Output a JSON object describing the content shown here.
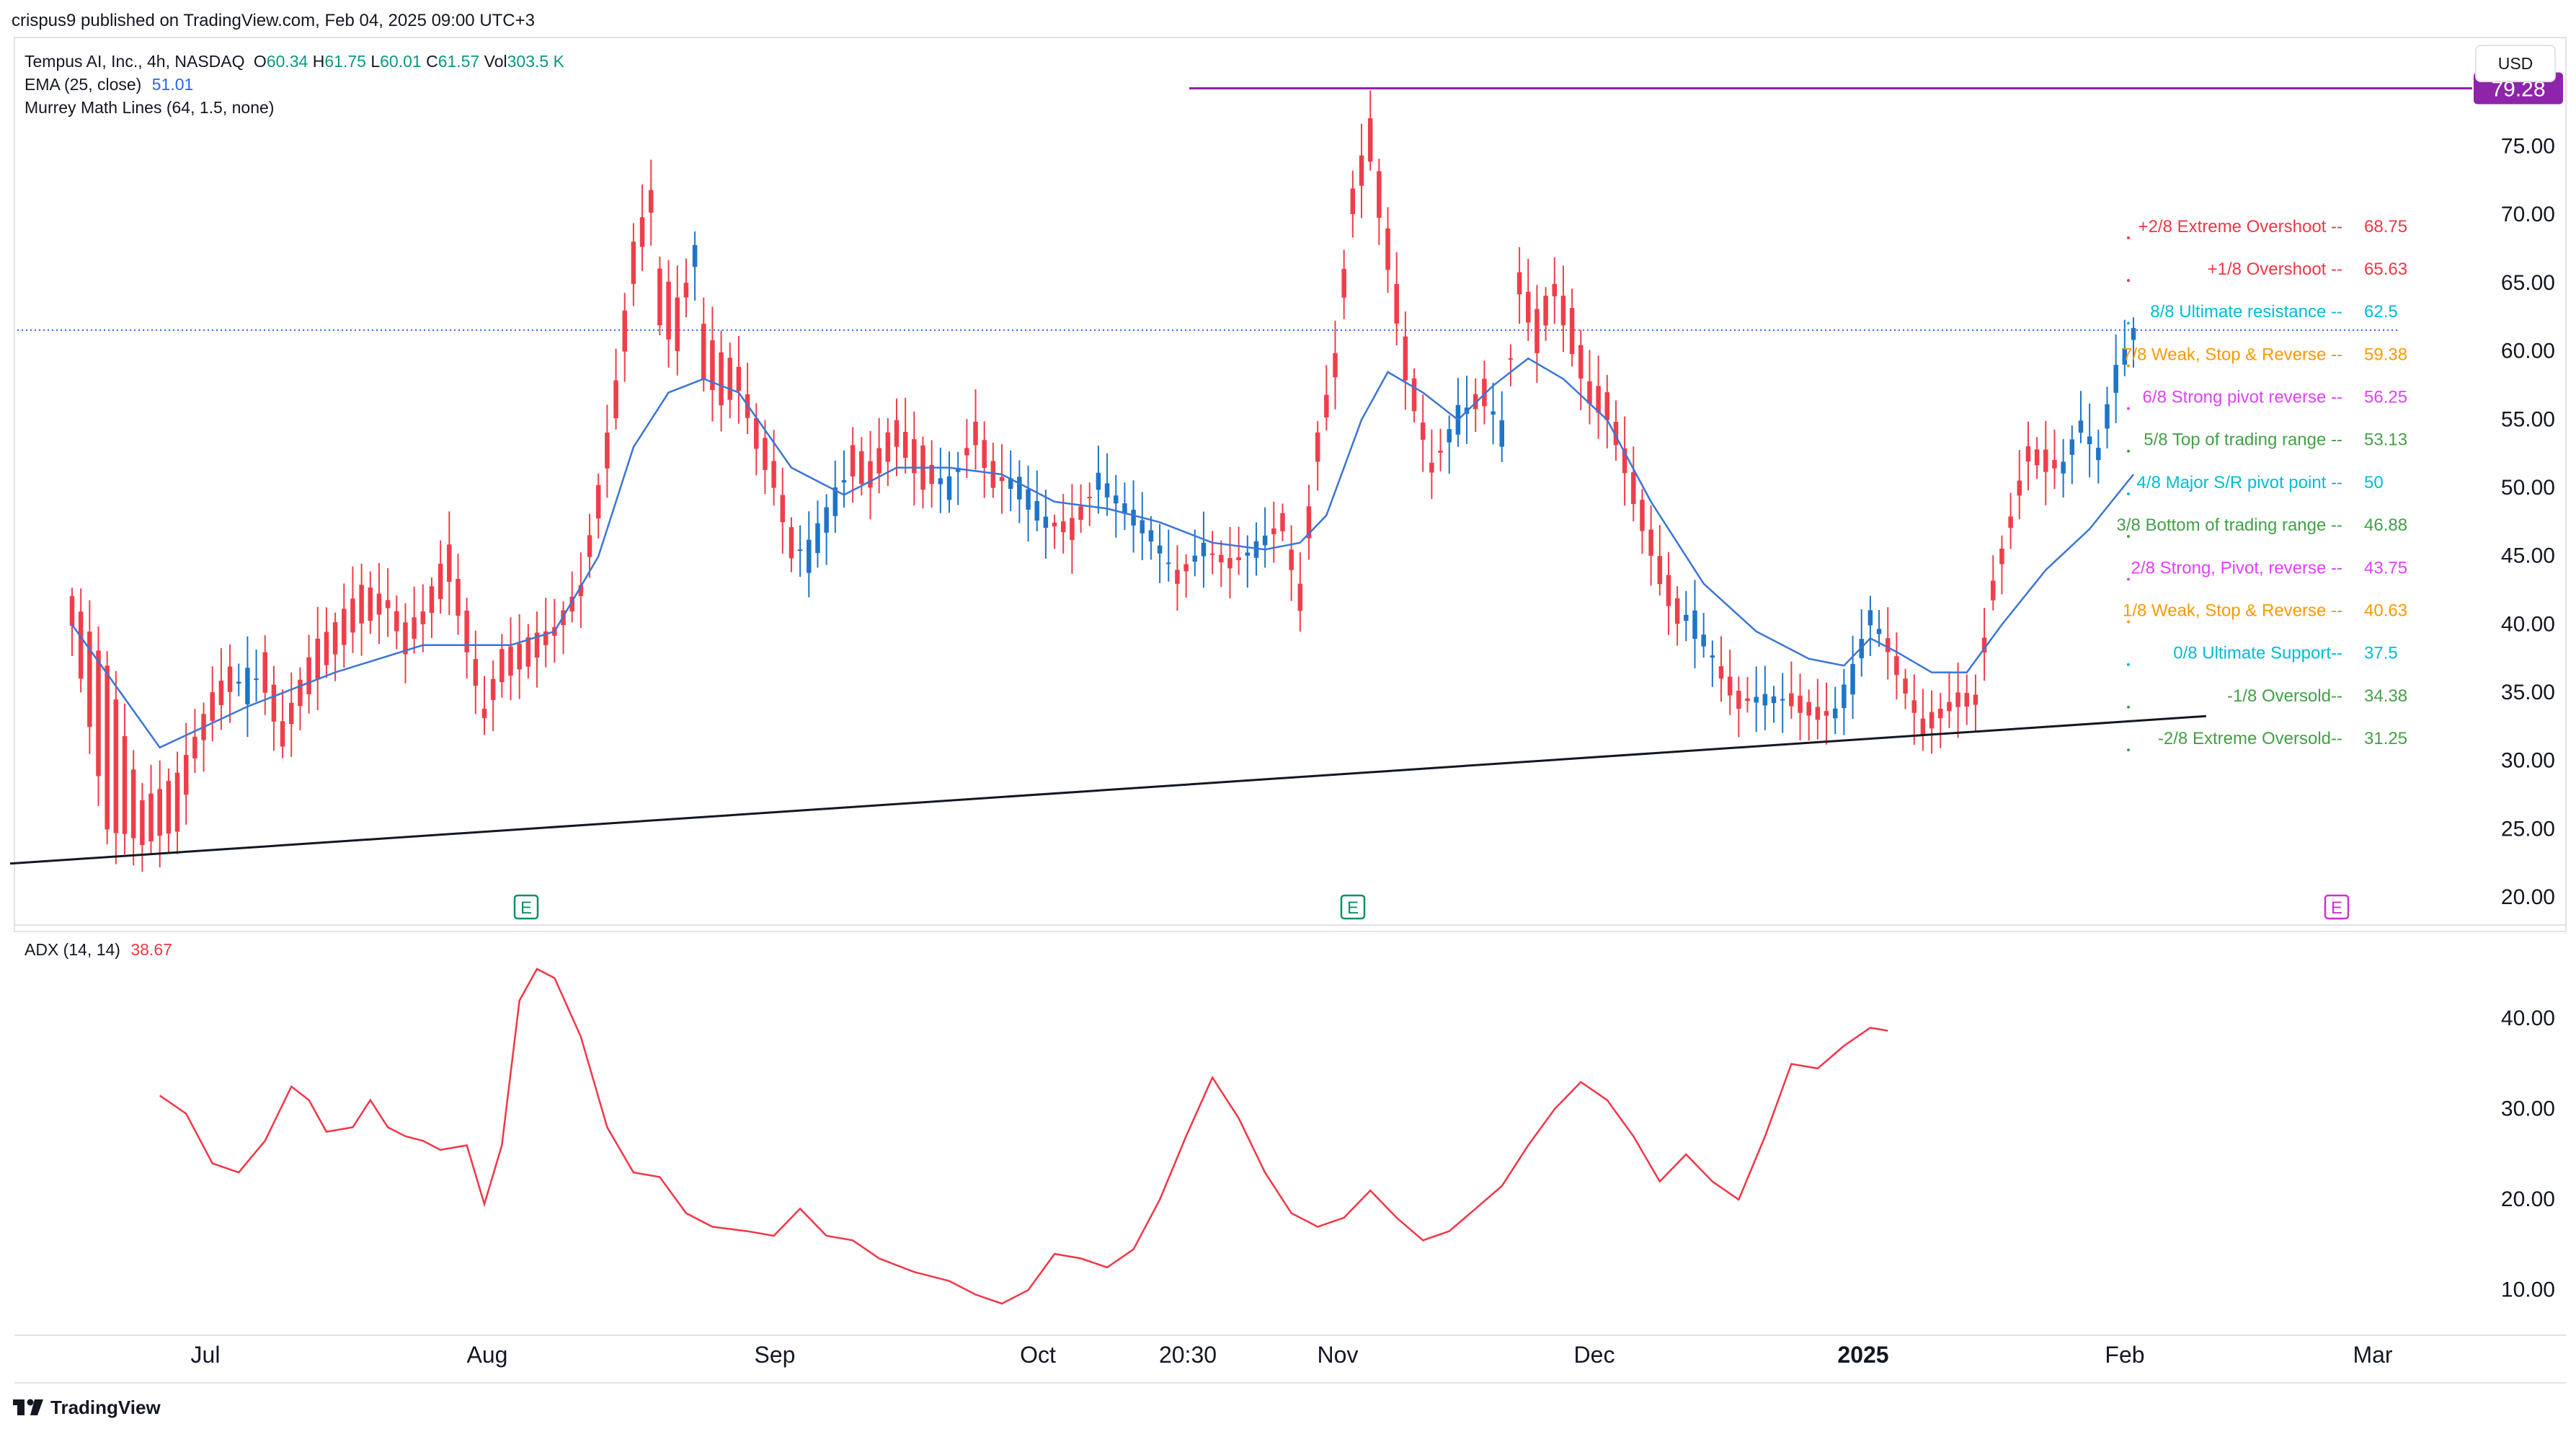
{
  "publisher_line": "crispus9 published on TradingView.com, Feb 04, 2025 09:00 UTC+3",
  "currency": "USD",
  "brand": "TradingView",
  "legend": {
    "symbol": "Tempus AI, Inc., 4h, NASDAQ",
    "o_label": "O",
    "o_value": "60.34",
    "h_label": "H",
    "h_value": "61.75",
    "l_label": "L",
    "l_value": "60.01",
    "c_label": "C",
    "c_value": "61.57",
    "vol_label": "Vol",
    "vol_value": "303.5 K",
    "ema_label": "EMA (25, close)",
    "ema_value": "51.01",
    "murrey_label": "Murrey Math Lines (64, 1.5, none)",
    "adx_label": "ADX (14, 14)",
    "adx_value": "38.67"
  },
  "colors": {
    "up": "#1e75c8",
    "down": "#ef3e4a",
    "ema": "#3b75d6",
    "adx": "#f23645",
    "resistance": "#8e24aa",
    "trendline": "#131722",
    "earnings": "#0a8f6f",
    "earnings_future": "#d22ed2"
  },
  "chart_data": [
    {
      "type": "candlestick",
      "title": "Tempus AI, Inc., 4h, NASDAQ",
      "ylim": [
        18,
        83
      ],
      "yticks": [
        20,
        25,
        30,
        35,
        40,
        45,
        50,
        55,
        60,
        65,
        70,
        75
      ],
      "ytick_labels": [
        "20.00",
        "25.00",
        "30.00",
        "35.00",
        "40.00",
        "45.00",
        "50.00",
        "55.00",
        "60.00",
        "65.00",
        "70.00",
        "75.00"
      ],
      "x_labels": [
        "Jul",
        "Aug",
        "Sep",
        "Oct",
        "20:30",
        "Nov",
        "Dec",
        "2025",
        "Feb",
        "Mar"
      ],
      "anchors": [
        [
          0,
          42,
          40
        ],
        [
          4,
          37,
          25
        ],
        [
          8,
          27,
          24
        ],
        [
          12,
          29,
          25
        ],
        [
          14,
          32,
          30
        ],
        [
          16,
          35,
          33
        ],
        [
          18,
          37,
          35
        ],
        [
          20,
          34,
          37
        ],
        [
          22,
          38,
          35
        ],
        [
          24,
          33,
          31
        ],
        [
          26,
          36,
          34
        ],
        [
          28,
          39,
          36
        ],
        [
          30,
          40,
          38
        ],
        [
          33,
          43,
          40
        ],
        [
          36,
          42,
          41
        ],
        [
          38,
          40,
          38
        ],
        [
          40,
          41,
          40
        ],
        [
          43,
          46,
          43
        ],
        [
          45,
          41,
          38
        ],
        [
          47,
          34,
          33
        ],
        [
          49,
          38,
          36
        ],
        [
          52,
          39,
          37
        ],
        [
          55,
          40,
          39
        ],
        [
          58,
          43,
          42
        ],
        [
          60,
          50,
          48
        ],
        [
          62,
          58,
          55
        ],
        [
          64,
          68,
          65
        ],
        [
          66,
          72,
          70
        ],
        [
          67,
          66,
          62
        ],
        [
          69,
          64,
          60
        ],
        [
          71,
          66,
          68
        ],
        [
          72,
          62,
          58
        ],
        [
          74,
          60,
          56
        ],
        [
          76,
          59,
          57
        ],
        [
          78,
          55,
          53
        ],
        [
          80,
          52,
          50
        ],
        [
          82,
          47,
          45
        ],
        [
          84,
          44,
          46
        ],
        [
          87,
          48,
          50
        ],
        [
          89,
          53,
          51
        ],
        [
          91,
          52,
          50
        ],
        [
          94,
          55,
          53
        ],
        [
          97,
          53,
          50
        ],
        [
          100,
          49,
          51
        ],
        [
          103,
          55,
          53
        ],
        [
          105,
          52,
          50
        ],
        [
          108,
          49,
          51
        ],
        [
          111,
          47,
          48
        ],
        [
          114,
          48,
          46
        ],
        [
          117,
          50,
          51
        ],
        [
          120,
          48,
          49
        ],
        [
          123,
          46,
          47
        ],
        [
          126,
          44,
          43
        ],
        [
          129,
          45,
          46
        ],
        [
          132,
          45,
          44
        ],
        [
          135,
          45,
          46
        ],
        [
          138,
          48,
          47
        ],
        [
          140,
          43,
          41
        ],
        [
          142,
          54,
          52
        ],
        [
          144,
          60,
          58
        ],
        [
          146,
          72,
          70
        ],
        [
          148,
          77,
          74
        ],
        [
          150,
          69,
          66
        ],
        [
          152,
          61,
          58
        ],
        [
          155,
          52,
          51
        ],
        [
          158,
          54,
          56
        ],
        [
          161,
          58,
          56
        ],
        [
          163,
          53,
          55
        ],
        [
          165,
          66,
          64
        ],
        [
          167,
          63,
          60
        ],
        [
          169,
          65,
          64
        ],
        [
          171,
          63,
          60
        ],
        [
          173,
          58,
          56
        ],
        [
          175,
          57,
          55
        ],
        [
          177,
          53,
          51
        ],
        [
          179,
          49,
          47
        ],
        [
          181,
          45,
          43
        ],
        [
          183,
          42,
          40
        ],
        [
          185,
          39,
          41
        ],
        [
          188,
          37,
          36
        ],
        [
          190,
          35,
          34
        ],
        [
          193,
          34,
          35
        ],
        [
          196,
          35,
          34
        ],
        [
          199,
          34,
          33
        ],
        [
          201,
          33,
          34
        ],
        [
          203,
          35,
          37
        ],
        [
          205,
          40,
          41
        ],
        [
          207,
          39,
          38
        ],
        [
          209,
          36,
          35
        ],
        [
          211,
          33,
          32
        ],
        [
          213,
          34,
          33
        ],
        [
          215,
          35,
          34
        ],
        [
          217,
          35,
          34
        ],
        [
          219,
          43,
          42
        ],
        [
          221,
          48,
          47
        ],
        [
          223,
          53,
          52
        ],
        [
          225,
          53,
          51
        ],
        [
          227,
          51,
          52
        ],
        [
          229,
          54,
          55
        ],
        [
          231,
          52,
          53
        ],
        [
          233,
          57,
          59
        ],
        [
          235,
          61,
          61.57
        ]
      ],
      "ema": [
        [
          0,
          40
        ],
        [
          10,
          31
        ],
        [
          20,
          34
        ],
        [
          30,
          36.5
        ],
        [
          40,
          38.5
        ],
        [
          50,
          38.5
        ],
        [
          55,
          39.5
        ],
        [
          60,
          45
        ],
        [
          64,
          53
        ],
        [
          68,
          57
        ],
        [
          72,
          58
        ],
        [
          76,
          57
        ],
        [
          82,
          51.5
        ],
        [
          88,
          49.5
        ],
        [
          94,
          51.5
        ],
        [
          100,
          51.5
        ],
        [
          106,
          51
        ],
        [
          112,
          49
        ],
        [
          118,
          48.5
        ],
        [
          124,
          47.5
        ],
        [
          130,
          46
        ],
        [
          136,
          45.5
        ],
        [
          140,
          46
        ],
        [
          143,
          48
        ],
        [
          147,
          55
        ],
        [
          150,
          58.5
        ],
        [
          154,
          57
        ],
        [
          158,
          55
        ],
        [
          162,
          57.5
        ],
        [
          166,
          59.5
        ],
        [
          170,
          58
        ],
        [
          175,
          55
        ],
        [
          180,
          49
        ],
        [
          186,
          43
        ],
        [
          192,
          39.5
        ],
        [
          198,
          37.5
        ],
        [
          202,
          37
        ],
        [
          205,
          39
        ],
        [
          208,
          38
        ],
        [
          212,
          36.5
        ],
        [
          216,
          36.5
        ],
        [
          220,
          40
        ],
        [
          225,
          44
        ],
        [
          230,
          47
        ],
        [
          235,
          51
        ]
      ],
      "murrey_levels": [
        {
          "label": "+2/8 Extreme Overshoot --",
          "value": 68.75,
          "value_text": "68.75",
          "color": "#f23645"
        },
        {
          "label": "+1/8 Overshoot --",
          "value": 65.63,
          "value_text": "65.63",
          "color": "#f23645"
        },
        {
          "label": "8/8 Ultimate resistance --",
          "value": 62.5,
          "value_text": "62.5",
          "color": "#00bcd4"
        },
        {
          "label": "7/8 Weak, Stop & Reverse --",
          "value": 59.38,
          "value_text": "59.38",
          "color": "#ff9800"
        },
        {
          "label": "6/8 Strong pivot reverse --",
          "value": 56.25,
          "value_text": "56.25",
          "color": "#e040fb"
        },
        {
          "label": "5/8 Top of trading range --",
          "value": 53.13,
          "value_text": "53.13",
          "color": "#43a047"
        },
        {
          "label": "4/8 Major S/R pivot point --",
          "value": 50,
          "value_text": "50",
          "color": "#00bcd4"
        },
        {
          "label": "3/8 Bottom of trading range --",
          "value": 46.88,
          "value_text": "46.88",
          "color": "#43a047"
        },
        {
          "label": "2/8 Strong, Pivot, reverse --",
          "value": 43.75,
          "value_text": "43.75",
          "color": "#e040fb"
        },
        {
          "label": "1/8 Weak, Stop & Reverse --",
          "value": 40.63,
          "value_text": "40.63",
          "color": "#ff9800"
        },
        {
          "label": "0/8 Ultimate Support--",
          "value": 37.5,
          "value_text": "37.5",
          "color": "#00bcd4"
        },
        {
          "label": "-1/8 Oversold--",
          "value": 34.38,
          "value_text": "34.38",
          "color": "#43a047"
        },
        {
          "label": "-2/8 Extreme Oversold--",
          "value": 31.25,
          "value_text": "31.25",
          "color": "#43a047"
        }
      ],
      "resistance_level": 79.28,
      "resistance_label": "79.28",
      "last_price": 61.57,
      "trendline": [
        [
          0,
          22.5
        ],
        [
          240,
          33.3
        ]
      ],
      "earnings_marker_label": "E"
    },
    {
      "type": "line",
      "title": "ADX (14, 14)",
      "ylim": [
        5,
        49
      ],
      "yticks": [
        10,
        20,
        30,
        40
      ],
      "ytick_labels": [
        "10.00",
        "20.00",
        "30.00",
        "40.00"
      ],
      "series": [
        {
          "name": "ADX (14, 14)",
          "points": [
            [
              10,
              31.5
            ],
            [
              13,
              29.5
            ],
            [
              16,
              24
            ],
            [
              19,
              23
            ],
            [
              22,
              26.5
            ],
            [
              25,
              32.5
            ],
            [
              27,
              31
            ],
            [
              29,
              27.5
            ],
            [
              32,
              28
            ],
            [
              34,
              31
            ],
            [
              36,
              28
            ],
            [
              38,
              27
            ],
            [
              40,
              26.5
            ],
            [
              42,
              25.5
            ],
            [
              45,
              26
            ],
            [
              47,
              19.5
            ],
            [
              49,
              26
            ],
            [
              51,
              42
            ],
            [
              53,
              45.5
            ],
            [
              55,
              44.5
            ],
            [
              58,
              38
            ],
            [
              61,
              28
            ],
            [
              64,
              23
            ],
            [
              67,
              22.5
            ],
            [
              70,
              18.5
            ],
            [
              73,
              17
            ],
            [
              77,
              16.5
            ],
            [
              80,
              16
            ],
            [
              83,
              19
            ],
            [
              86,
              16
            ],
            [
              89,
              15.5
            ],
            [
              92,
              13.5
            ],
            [
              96,
              12
            ],
            [
              100,
              11
            ],
            [
              103,
              9.5
            ],
            [
              106,
              8.5
            ],
            [
              109,
              10
            ],
            [
              112,
              14
            ],
            [
              115,
              13.5
            ],
            [
              118,
              12.5
            ],
            [
              121,
              14.5
            ],
            [
              124,
              20
            ],
            [
              127,
              27
            ],
            [
              130,
              33.5
            ],
            [
              133,
              29
            ],
            [
              136,
              23
            ],
            [
              139,
              18.5
            ],
            [
              142,
              17
            ],
            [
              145,
              18
            ],
            [
              148,
              21
            ],
            [
              151,
              18
            ],
            [
              154,
              15.5
            ],
            [
              157,
              16.5
            ],
            [
              160,
              19
            ],
            [
              163,
              21.5
            ],
            [
              166,
              26
            ],
            [
              169,
              30
            ],
            [
              172,
              33
            ],
            [
              175,
              31
            ],
            [
              178,
              27
            ],
            [
              181,
              22
            ],
            [
              184,
              25
            ],
            [
              187,
              22
            ],
            [
              190,
              20
            ],
            [
              193,
              27
            ],
            [
              196,
              35
            ],
            [
              199,
              34.5
            ],
            [
              202,
              37
            ],
            [
              205,
              39
            ],
            [
              207,
              38.67
            ]
          ]
        }
      ]
    }
  ]
}
